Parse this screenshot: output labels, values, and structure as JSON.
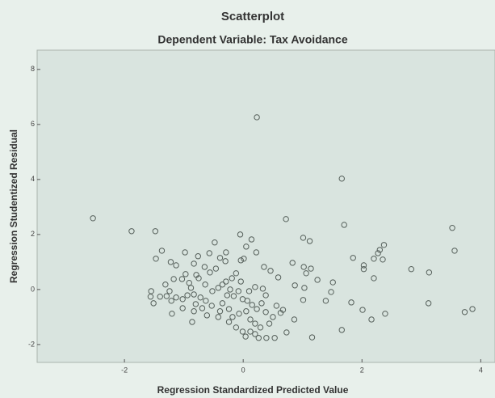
{
  "chart_data": {
    "type": "scatter",
    "title": "Scatterplot",
    "subtitle": "Dependent Variable: Tax Avoidance",
    "x_label": "Regression Standardized Predicted Value",
    "y_label": "Regression Studentized Residual",
    "xlim": [
      -3.47,
      4.24
    ],
    "ylim": [
      -2.65,
      8.7
    ],
    "xticks": [
      -2,
      0,
      2,
      4
    ],
    "yticks": [
      -2,
      0,
      2,
      4,
      6,
      8
    ],
    "color": "#555f5a",
    "x": [
      0.23,
      1.66,
      -2.53,
      -1.48,
      -1.88,
      0.72,
      1.7,
      3.52,
      3.56,
      2.83,
      3.13,
      3.12,
      3.73,
      3.86,
      2.37,
      2.3,
      2.27,
      2.2,
      2.35,
      1.85,
      2.03,
      2.03,
      2.2,
      1.82,
      2.01,
      2.16,
      2.39,
      1.66,
      1.16,
      1.01,
      1.12,
      1.51,
      1.48,
      1.39,
      1.25,
      1.03,
      1.01,
      0.87,
      1.02,
      1.14,
      1.06,
      0.83,
      0.86,
      0.63,
      0.73,
      0.53,
      0.39,
      -0.05,
      0.14,
      0.05,
      0.01,
      -0.04,
      0.22,
      -0.29,
      -0.39,
      -0.76,
      -1.47,
      -1.37,
      -0.98,
      -1.22,
      -1.13,
      -0.83,
      -0.65,
      -0.56,
      -0.46,
      -0.79,
      -0.97,
      -1.03,
      -1.17,
      -1.31,
      -1.24,
      -1.55,
      -1.56,
      -1.29,
      -1.21,
      -1.13,
      -1.02,
      -0.94,
      -0.83,
      -0.72,
      -0.63,
      -0.53,
      -0.69,
      -0.83,
      -1.02,
      -1.2,
      -0.52,
      -0.42,
      -0.29,
      -0.19,
      -0.12,
      -0.04,
      -0.08,
      -0.16,
      -0.01,
      0.07,
      0.15,
      0.23,
      0.05,
      -0.07,
      -0.18,
      -0.24,
      -0.35,
      0.12,
      0.2,
      0.29,
      0.44,
      0.5,
      0.38,
      0.31,
      0.56,
      0.67,
      -0.12,
      -0.01,
      0.12,
      0.2,
      0.26,
      0.04,
      0.1,
      0.33,
      0.2,
      0.35,
      0.46,
      0.59,
      0.38,
      -0.64,
      -0.75,
      -0.88,
      -0.8,
      -0.61,
      -0.42,
      -0.24,
      -0.86,
      -0.35,
      -0.3,
      -0.57,
      -0.48,
      -0.91,
      -1.4,
      -1.51,
      -0.27,
      -0.39,
      -0.22
    ],
    "values": [
      6.26,
      4.03,
      2.59,
      2.12,
      2.12,
      2.56,
      2.35,
      2.24,
      1.41,
      0.74,
      0.62,
      -0.5,
      -0.82,
      -0.71,
      1.62,
      1.44,
      1.32,
      1.12,
      1.09,
      1.15,
      0.88,
      0.74,
      0.41,
      -0.47,
      -0.74,
      -1.09,
      -0.88,
      -1.47,
      -1.74,
      1.88,
      1.76,
      0.26,
      -0.09,
      -0.41,
      0.35,
      0.06,
      -0.38,
      0.15,
      0.82,
      0.76,
      0.59,
      0.97,
      -1.09,
      -0.85,
      -1.56,
      -1.76,
      -1.76,
      2.0,
      1.82,
      1.56,
      1.12,
      1.06,
      1.35,
      1.35,
      1.15,
      1.21,
      1.12,
      1.41,
      1.35,
      1.0,
      0.88,
      0.94,
      0.82,
      0.62,
      0.76,
      0.53,
      0.56,
      0.38,
      0.38,
      0.18,
      -0.06,
      -0.06,
      -0.26,
      -0.24,
      -0.41,
      -0.29,
      -0.35,
      -0.21,
      -0.18,
      -0.29,
      -0.41,
      -0.59,
      -0.68,
      -0.79,
      -0.68,
      -0.88,
      -0.06,
      0.06,
      0.29,
      0.41,
      0.59,
      0.29,
      -0.06,
      -0.24,
      -0.35,
      -0.41,
      -0.56,
      -0.71,
      -0.79,
      -0.88,
      -1.0,
      -0.71,
      -0.5,
      -1.09,
      -1.24,
      -1.38,
      -1.24,
      -1.0,
      -0.82,
      -0.5,
      -0.59,
      -0.74,
      -1.38,
      -1.53,
      -1.53,
      -1.62,
      -1.76,
      -1.71,
      -0.06,
      0.03,
      0.09,
      0.82,
      0.68,
      0.44,
      -0.21,
      0.18,
      0.41,
      0.06,
      -0.53,
      -0.94,
      -1.0,
      -1.18,
      -1.18,
      0.18,
      1.03,
      1.32,
      1.71,
      0.24,
      -0.26,
      -0.5,
      -0.21,
      -0.79,
      0.0
    ]
  }
}
